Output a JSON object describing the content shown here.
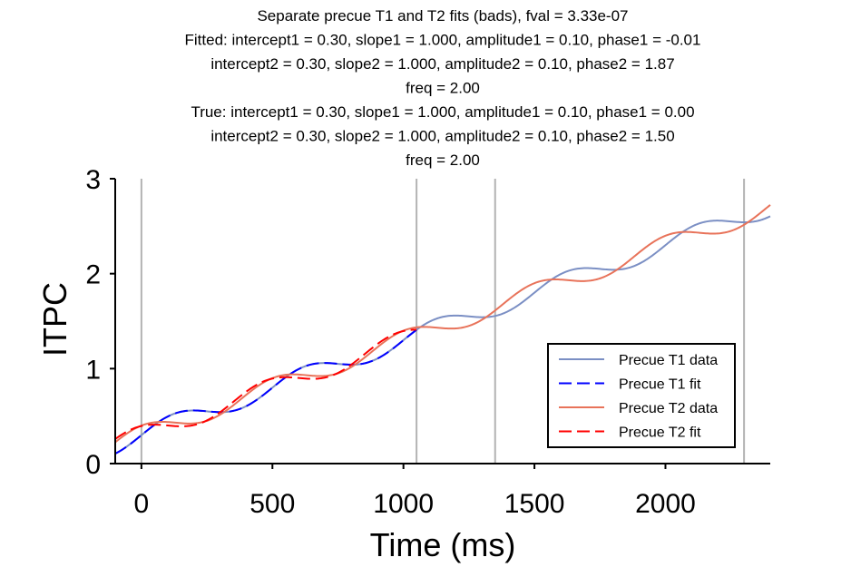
{
  "chart_data": {
    "type": "line",
    "title_lines": [
      "Separate precue T1 and T2 fits (bads), fval = 3.33e-07",
      "Fitted: intercept1 = 0.30, slope1 = 1.000, amplitude1 = 0.10, phase1 = -0.01",
      "intercept2 = 0.30, slope2 = 1.000, amplitude2 = 0.10, phase2 = 1.87",
      "freq = 2.00",
      "True: intercept1 = 0.30, slope1 = 1.000, amplitude1 = 0.10, phase1 = 0.00",
      "intercept2 = 0.30, slope2 = 1.000, amplitude2 = 0.10, phase2 = 1.50",
      "freq = 2.00"
    ],
    "xlabel": "Time (ms)",
    "ylabel": "ITPC",
    "xlim": [
      -100,
      2400
    ],
    "ylim": [
      0,
      3
    ],
    "xticks": [
      0,
      500,
      1000,
      1500,
      2000
    ],
    "xtick_labels": [
      "0",
      "500",
      "1000",
      "1500",
      "2000"
    ],
    "yticks": [
      0,
      1,
      2,
      3
    ],
    "ytick_labels": [
      "0",
      "1",
      "2",
      "3"
    ],
    "vlines": [
      0,
      1050,
      1350,
      2300
    ],
    "vline_color": "#b3b3b3",
    "grid": false,
    "legend_position": "lower-right",
    "legend": [
      {
        "label": "Precue T1 data",
        "color": "#7b8fc4",
        "style": "solid"
      },
      {
        "label": "Precue T1 fit",
        "color": "#0000ff",
        "style": "dashed"
      },
      {
        "label": "Precue T2 data",
        "color": "#e8735a",
        "style": "solid"
      },
      {
        "label": "Precue T2 fit",
        "color": "#ff0000",
        "style": "dashed"
      }
    ],
    "series": [
      {
        "name": "Precue T1 data",
        "color": "#7b8fc4",
        "style": "solid",
        "x_range": [
          -100,
          2400
        ],
        "model": {
          "intercept": 0.3,
          "slope": 1.0,
          "amplitude": 0.1,
          "phase": 0.0,
          "freq": 2.0
        }
      },
      {
        "name": "Precue T1 fit",
        "color": "#0000ff",
        "style": "dashed",
        "x_range": [
          -100,
          1050
        ],
        "model": {
          "intercept": 0.3,
          "slope": 1.0,
          "amplitude": 0.1,
          "phase": -0.01,
          "freq": 2.0
        }
      },
      {
        "name": "Precue T2 data",
        "color": "#e8735a",
        "style": "solid",
        "x_range": [
          -100,
          2400
        ],
        "model": {
          "intercept": 0.3,
          "slope": 1.0,
          "amplitude": 0.1,
          "phase": 1.5,
          "freq": 2.0
        }
      },
      {
        "name": "Precue T2 fit",
        "color": "#ff0000",
        "style": "dashed",
        "x_range": [
          -100,
          1050
        ],
        "model": {
          "intercept": 0.3,
          "slope": 1.0,
          "amplitude": 0.1,
          "phase": 1.87,
          "freq": 2.0
        }
      }
    ]
  }
}
